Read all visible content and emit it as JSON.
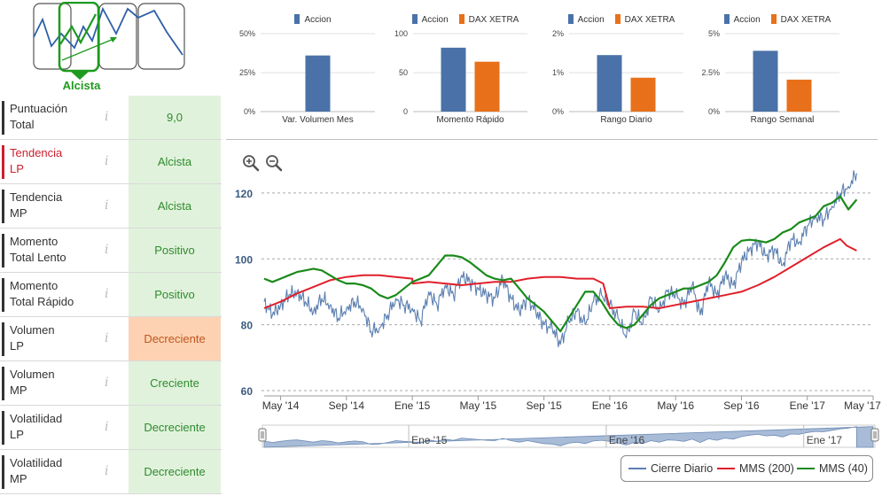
{
  "trend": {
    "label": "Alcista",
    "colors": {
      "accent": "#1e9a1e",
      "line": "#2f5fa8"
    }
  },
  "metrics": [
    {
      "name": "Puntuación\nTotal",
      "value": "9,0",
      "info": "i",
      "style": "normal"
    },
    {
      "name": "Tendencia\nLP",
      "value": "Alcista",
      "info": "i",
      "style": "highlight"
    },
    {
      "name": "Tendencia\nMP",
      "value": "Alcista",
      "info": "i",
      "style": "normal"
    },
    {
      "name": "Momento\nTotal Lento",
      "value": "Positivo",
      "info": "i",
      "style": "normal"
    },
    {
      "name": "Momento\nTotal Rápido",
      "value": "Positivo",
      "info": "i",
      "style": "normal"
    },
    {
      "name": "Volumen\nLP",
      "value": "Decreciente",
      "info": "i",
      "style": "warning"
    },
    {
      "name": "Volumen\nMP",
      "value": "Creciente",
      "info": "i",
      "style": "normal"
    },
    {
      "name": "Volatilidad\nLP",
      "value": "Decreciente",
      "info": "i",
      "style": "normal"
    },
    {
      "name": "Volatilidad\nMP",
      "value": "Decreciente",
      "info": "i",
      "style": "normal"
    }
  ],
  "colors": {
    "accion": "#4a72a8",
    "dax": "#e8701a",
    "close": "#5b7fb0",
    "mms200": "#e0202b",
    "mms40": "#1a8a1a",
    "navigator": "#a8bcd8"
  },
  "chart_data": [
    {
      "type": "bar",
      "title": "Var. Volumen Mes",
      "legend": [
        "Accion"
      ],
      "yticks": [
        "50%",
        "25%",
        "0%"
      ],
      "ylim": [
        0,
        50
      ],
      "series": [
        {
          "name": "Accion",
          "values": [
            36
          ]
        }
      ]
    },
    {
      "type": "bar",
      "title": "Momento Rápido",
      "legend": [
        "Accion",
        "DAX XETRA"
      ],
      "yticks": [
        "100",
        "50",
        "0"
      ],
      "ylim": [
        0,
        100
      ],
      "series": [
        {
          "name": "Accion",
          "values": [
            82
          ]
        },
        {
          "name": "DAX XETRA",
          "values": [
            64
          ]
        }
      ]
    },
    {
      "type": "bar",
      "title": "Rango Diario",
      "legend": [
        "Accion",
        "DAX XETRA"
      ],
      "yticks": [
        "2%",
        "1%",
        "0%"
      ],
      "ylim": [
        0,
        2
      ],
      "series": [
        {
          "name": "Accion",
          "values": [
            1.45
          ]
        },
        {
          "name": "DAX XETRA",
          "values": [
            0.87
          ]
        }
      ]
    },
    {
      "type": "bar",
      "title": "Rango Semanal",
      "legend": [
        "Accion",
        "DAX XETRA"
      ],
      "yticks": [
        "5%",
        "2.5%",
        "0%"
      ],
      "ylim": [
        0,
        5
      ],
      "series": [
        {
          "name": "Accion",
          "values": [
            3.9
          ]
        },
        {
          "name": "DAX XETRA",
          "values": [
            2.05
          ]
        }
      ]
    },
    {
      "type": "line",
      "title": "",
      "ylim": [
        60,
        124
      ],
      "yticks": [
        120,
        100,
        80,
        60
      ],
      "xlim": [
        0,
        37
      ],
      "xticks": [
        {
          "x": 1,
          "label": "May '14"
        },
        {
          "x": 5,
          "label": "Sep '14"
        },
        {
          "x": 9,
          "label": "Ene '15"
        },
        {
          "x": 13,
          "label": "May '15"
        },
        {
          "x": 17,
          "label": "Sep '15"
        },
        {
          "x": 21,
          "label": "Ene '16"
        },
        {
          "x": 25,
          "label": "May '16"
        },
        {
          "x": 29,
          "label": "Sep '16"
        },
        {
          "x": 33,
          "label": "Ene '17"
        },
        {
          "x": 37,
          "label": "May '17"
        }
      ],
      "navigator_labels": [
        "Ene '15",
        "Ene '16",
        "Ene '17"
      ],
      "series": [
        {
          "name": "Cierre Diario",
          "x": [
            0,
            0.5,
            1,
            1.5,
            2,
            2.5,
            3,
            3.5,
            4,
            4.5,
            5,
            5.5,
            6,
            6.5,
            7,
            7.5,
            8,
            8.5,
            9,
            9.5,
            10,
            10.5,
            11,
            11.5,
            12,
            12.5,
            13,
            13.5,
            14,
            14.5,
            15,
            15.5,
            16,
            16.5,
            17,
            17.5,
            18,
            18.5,
            19,
            19.5,
            20,
            20.5,
            21,
            21.5,
            22,
            22.5,
            23,
            23.5,
            24,
            24.5,
            25,
            25.5,
            26,
            26.5,
            27,
            27.5,
            28,
            28.5,
            29,
            29.5,
            30,
            30.5,
            31,
            31.5,
            32,
            32.5,
            33,
            33.5,
            34,
            34.5,
            35,
            35.5,
            36
          ],
          "values": [
            87,
            83,
            86,
            89,
            90,
            87,
            84,
            88,
            86,
            82,
            85,
            87,
            85,
            78,
            79,
            83,
            88,
            86,
            85,
            81,
            90,
            86,
            92,
            89,
            95,
            93,
            91,
            89,
            88,
            94,
            88,
            84,
            88,
            84,
            80,
            79,
            74,
            81,
            84,
            80,
            87,
            89,
            86,
            82,
            76,
            84,
            80,
            88,
            84,
            90,
            89,
            86,
            92,
            83,
            93,
            89,
            95,
            92,
            99,
            103,
            105,
            101,
            103,
            98,
            106,
            105,
            110,
            113,
            112,
            116,
            120,
            122,
            126
          ]
        },
        {
          "name": "MMS (200)",
          "x": [
            0,
            1,
            2,
            3,
            4,
            5,
            6,
            7,
            8,
            9,
            9.02,
            10,
            11,
            12,
            13,
            14,
            15,
            16,
            17,
            18,
            19,
            20,
            20.6,
            21,
            22,
            23,
            24,
            25,
            26,
            27,
            28,
            29,
            30,
            31,
            32,
            33,
            34,
            35,
            35.4,
            36
          ],
          "values": [
            85,
            87,
            89.5,
            91.5,
            93.5,
            94.5,
            95,
            95,
            94.5,
            94,
            92.5,
            93,
            92.5,
            92,
            92.5,
            93,
            93,
            94,
            94.5,
            94.5,
            94,
            94,
            92.5,
            85,
            85.5,
            85.5,
            85,
            86,
            87,
            88,
            89,
            90,
            92,
            94.5,
            97.5,
            100.5,
            103.5,
            106,
            104,
            102.5
          ]
        },
        {
          "name": "MMS (40)",
          "x": [
            0,
            0.5,
            1,
            1.5,
            2,
            2.5,
            3,
            3.5,
            4,
            4.5,
            5,
            5.5,
            6,
            6.5,
            7,
            7.5,
            8,
            8.5,
            9,
            9.5,
            10,
            10.5,
            11,
            11.5,
            12,
            12.5,
            13,
            13.5,
            14,
            14.5,
            15,
            15.5,
            16,
            16.5,
            17,
            17.5,
            18,
            18.5,
            19,
            19.5,
            20,
            20.5,
            21,
            21.5,
            22,
            22.5,
            23,
            23.5,
            24,
            24.5,
            25,
            25.5,
            26,
            26.5,
            27,
            27.5,
            28,
            28.5,
            29,
            29.5,
            30,
            30.5,
            31,
            31.5,
            32,
            32.5,
            33,
            33.5,
            34,
            34.5,
            35,
            35.5,
            36
          ],
          "values": [
            94,
            93,
            94,
            95,
            96,
            96.5,
            97,
            96.5,
            95,
            93.5,
            92.5,
            92.5,
            92,
            91,
            89,
            88,
            89,
            91,
            93,
            94,
            95,
            98,
            101,
            101,
            100.5,
            99,
            97,
            95,
            94,
            93.5,
            94,
            91,
            88,
            86,
            84,
            81,
            78,
            82,
            86,
            90,
            90,
            87,
            83,
            80,
            79,
            80,
            83,
            86,
            88,
            89,
            90,
            91,
            91,
            92,
            93,
            95,
            99,
            103.5,
            105.5,
            105.8,
            105.5,
            105,
            106,
            108,
            109,
            111,
            112,
            113,
            116,
            117,
            119,
            115,
            118
          ]
        }
      ]
    }
  ],
  "legend": [
    "Cierre Diario",
    "MMS (200)",
    "MMS (40)"
  ]
}
